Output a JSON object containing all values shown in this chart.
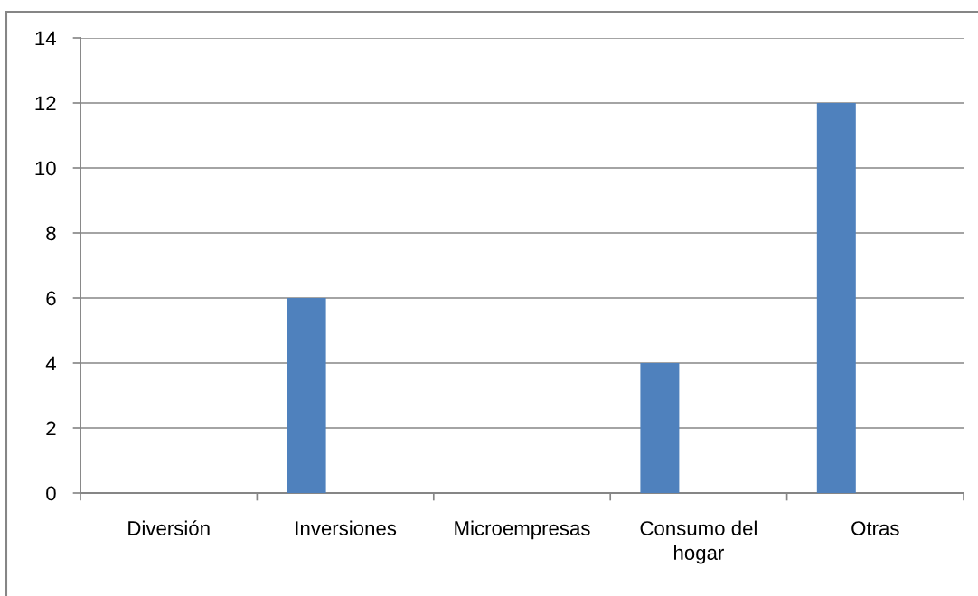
{
  "chart_data": {
    "type": "bar",
    "categories": [
      "Diversión",
      "Inversiones",
      "Microempresas",
      "Consumo del hogar",
      "Otras"
    ],
    "values": [
      0,
      6,
      0,
      4,
      12
    ],
    "color": "#4f81bd",
    "ylim": [
      0,
      14
    ],
    "yticks": [
      0,
      2,
      4,
      6,
      8,
      10,
      12,
      14
    ],
    "grid": "y"
  }
}
